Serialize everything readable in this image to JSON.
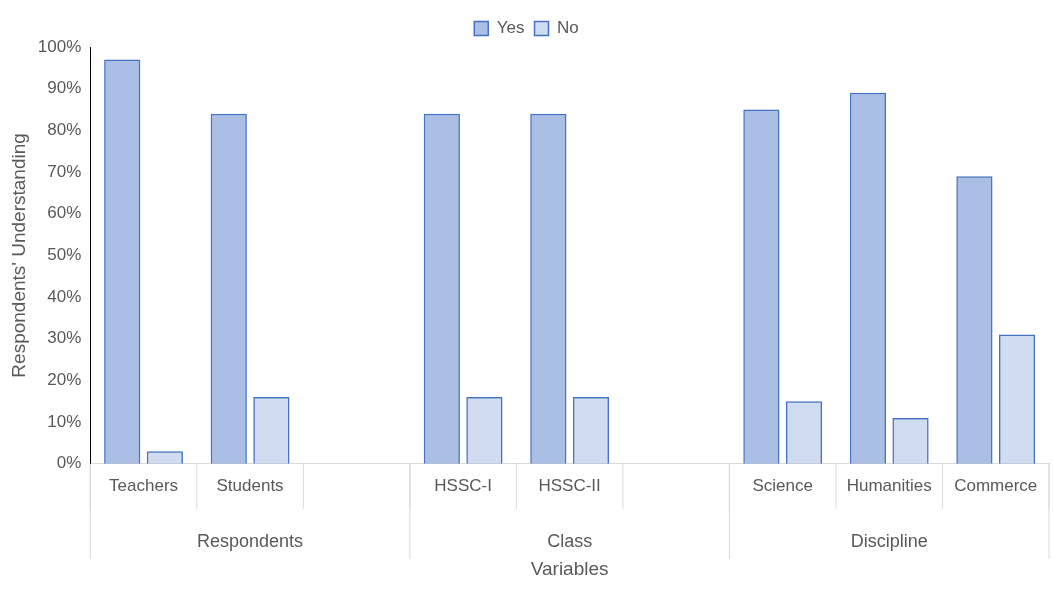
{
  "chart_data": {
    "type": "bar",
    "xlabel": "Variables",
    "ylabel": "Respondents' Understanding",
    "categories": [
      "Teachers",
      "Students",
      null,
      "HSSC-I",
      "HSSC-II",
      null,
      "Science",
      "Humanities",
      "Commerce"
    ],
    "series": [
      {
        "name": "Yes",
        "color": "#4472c4",
        "values": [
          97,
          84,
          null,
          84,
          84,
          null,
          85,
          89,
          69
        ]
      },
      {
        "name": "No",
        "color": "#4472c4",
        "values": [
          3,
          16,
          null,
          16,
          16,
          null,
          15,
          11,
          31
        ]
      }
    ],
    "ylim": [
      0,
      100
    ],
    "yticks": [
      {
        "value": 0,
        "label": "0%"
      },
      {
        "value": 10,
        "label": "10%"
      },
      {
        "value": 20,
        "label": "20%"
      },
      {
        "value": 30,
        "label": "30%"
      },
      {
        "value": 40,
        "label": "40%"
      },
      {
        "value": 50,
        "label": "50%"
      },
      {
        "value": 60,
        "label": "60%"
      },
      {
        "value": 70,
        "label": "70%"
      },
      {
        "value": 80,
        "label": "80%"
      },
      {
        "value": 90,
        "label": "90%"
      },
      {
        "value": 100,
        "label": "100%"
      }
    ],
    "annotations": [
      "Respondents",
      "Class",
      "Discipline"
    ],
    "legend": "top",
    "grid": false
  }
}
